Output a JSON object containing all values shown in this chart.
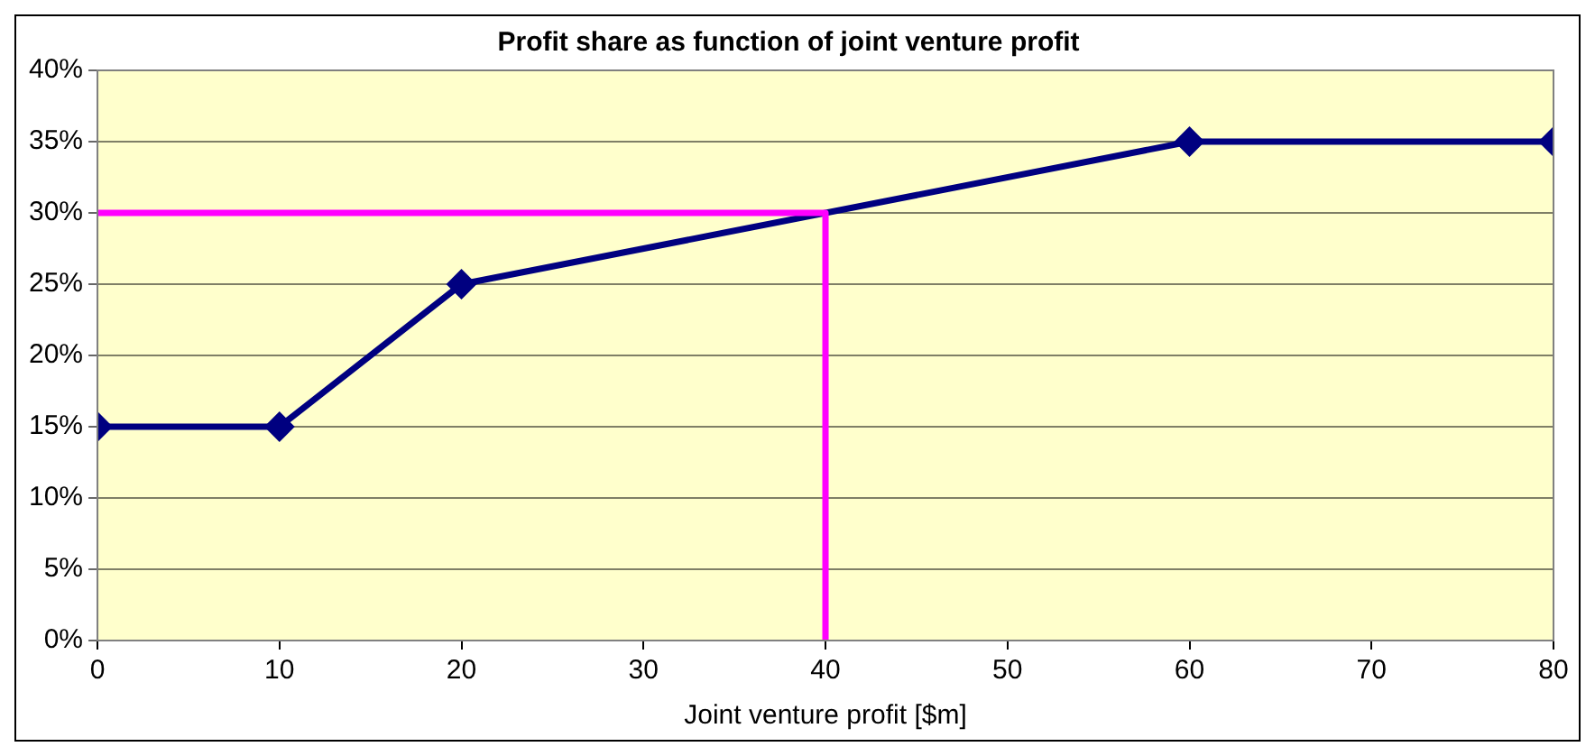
{
  "chart_data": {
    "type": "line",
    "title": "Profit share as function of joint venture profit",
    "xlabel": "Joint venture profit [$m]",
    "xlim": [
      0,
      80
    ],
    "xticks": [
      0,
      10,
      20,
      30,
      40,
      50,
      60,
      70,
      80
    ],
    "ylim": [
      0,
      40
    ],
    "yticks": [
      {
        "value": 0,
        "label": "0%"
      },
      {
        "value": 5,
        "label": "5%"
      },
      {
        "value": 10,
        "label": "10%"
      },
      {
        "value": 15,
        "label": "15%"
      },
      {
        "value": 20,
        "label": "20%"
      },
      {
        "value": 25,
        "label": "25%"
      },
      {
        "value": 30,
        "label": "30%"
      },
      {
        "value": 35,
        "label": "35%"
      },
      {
        "value": 40,
        "label": "40%"
      }
    ],
    "grid": "y",
    "legend": false,
    "series": [
      {
        "color": "#ff00ff",
        "x": [
          0,
          40,
          40
        ],
        "values": [
          30,
          30,
          0
        ],
        "marker": "none"
      },
      {
        "color": "#000080",
        "x": [
          0,
          10,
          20,
          60,
          80
        ],
        "values": [
          15,
          15,
          25,
          35,
          35
        ],
        "marker": "diamond"
      }
    ]
  }
}
